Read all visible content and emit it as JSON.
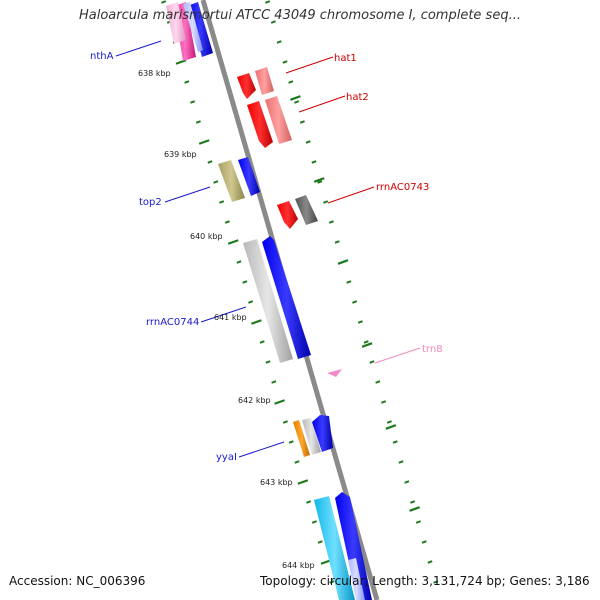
{
  "title": "Haloarcula marismortui ATCC 43049 chromosome I, complete seq...",
  "footer": {
    "accession": "Accession: NC_006396",
    "topology": "Topology: circular; Length: 3,131,724 bp; Genes: 3,186"
  },
  "colors": {
    "backbone": "#888888",
    "tick": "#1f7a1f",
    "label_blue": "#1a1acc",
    "label_red": "#cc0000",
    "label_pink": "#ee88bb"
  },
  "kbp_labels": [
    "638 kbp",
    "639 kbp",
    "640 kbp",
    "641 kbp",
    "642 kbp",
    "643 kbp",
    "644 kbp"
  ],
  "genes": [
    {
      "name": "nthA",
      "color": "#1a1acc"
    },
    {
      "name": "hat1",
      "color": "#cc0000"
    },
    {
      "name": "hat2",
      "color": "#cc0000"
    },
    {
      "name": "top2",
      "color": "#1a1acc"
    },
    {
      "name": "rrnAC0743",
      "color": "#cc0000"
    },
    {
      "name": "rrnAC0744",
      "color": "#1a1acc"
    },
    {
      "name": "trn8",
      "color": "#ee88bb"
    },
    {
      "name": "yyaI",
      "color": "#1a1acc"
    }
  ]
}
